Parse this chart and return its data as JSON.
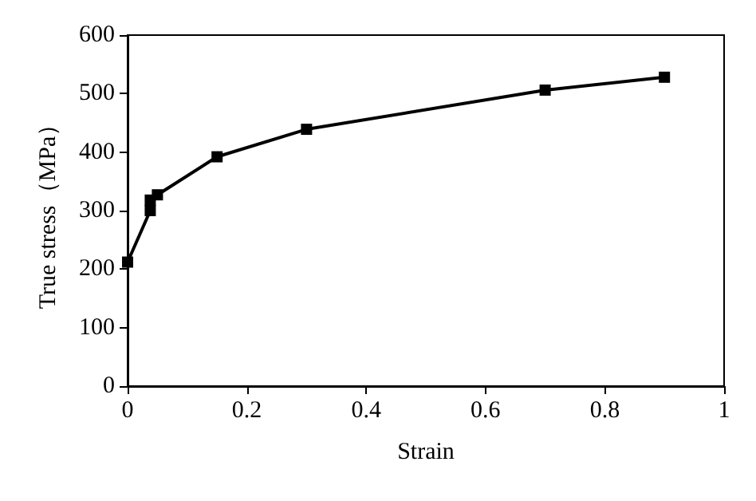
{
  "chart_data": {
    "type": "line",
    "xlabel": "Strain",
    "ylabel": "True stress（MPa）",
    "x": [
      0,
      0.038,
      0.038,
      0.05,
      0.15,
      0.3,
      0.7,
      0.9
    ],
    "values": [
      212,
      300,
      318,
      327,
      392,
      439,
      506,
      528
    ],
    "color": "#000000",
    "marker": "square",
    "line_style": "solid",
    "xlim": [
      0,
      1
    ],
    "xticks": [
      0,
      0.2,
      0.4,
      0.6,
      0.8,
      1
    ],
    "ylim": [
      0,
      600
    ],
    "yticks": [
      0,
      100,
      200,
      300,
      400,
      500,
      600
    ],
    "grid": false
  }
}
